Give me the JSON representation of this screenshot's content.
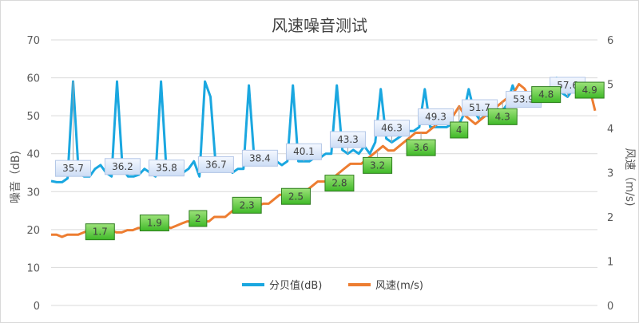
{
  "chart_data": {
    "type": "line",
    "title": "风速噪音测试",
    "ylabel_left": "噪音（dB)",
    "ylabel_right": "风速（m/s)",
    "ylim_left": [
      0,
      70
    ],
    "ylim_right": [
      0,
      6
    ],
    "yticks_left": [
      0,
      10,
      20,
      30,
      40,
      50,
      60,
      70
    ],
    "yticks_right": [
      0,
      1,
      2,
      3,
      4,
      5,
      6
    ],
    "grid": true,
    "legend_position": "bottom",
    "colors": {
      "noise": "#1aa7e0",
      "wind": "#ed7d31"
    },
    "series": [
      {
        "name": "分贝值(dB)",
        "axis": "left",
        "values": [
          32.8,
          32.5,
          32.5,
          33.5,
          59,
          35,
          34,
          34,
          36,
          37,
          35,
          34,
          59,
          36,
          34,
          34,
          34.5,
          36,
          35,
          34,
          59,
          35,
          35,
          34.5,
          35,
          36,
          38,
          34,
          59,
          55,
          36,
          36,
          37,
          35,
          36,
          36,
          58,
          38,
          37,
          37.5,
          37,
          38,
          37,
          38,
          58,
          38,
          38,
          38,
          39,
          39,
          40,
          40,
          58,
          41,
          40,
          41,
          40,
          42,
          40,
          43,
          57,
          44,
          43,
          44,
          45,
          46,
          46,
          47,
          57,
          47,
          47,
          47,
          47,
          48,
          47,
          50,
          57,
          51,
          49,
          50,
          50,
          52,
          51,
          53,
          58,
          54,
          53,
          53,
          54,
          54,
          55,
          54,
          60,
          56,
          55,
          57,
          56,
          57,
          57,
          58
        ]
      },
      {
        "name": "风速(m/s)",
        "axis": "right",
        "values": [
          1.6,
          1.6,
          1.55,
          1.6,
          1.6,
          1.6,
          1.65,
          1.7,
          1.7,
          1.75,
          1.7,
          1.7,
          1.65,
          1.65,
          1.7,
          1.7,
          1.75,
          1.75,
          1.8,
          1.8,
          1.75,
          1.8,
          1.75,
          1.8,
          1.85,
          1.9,
          1.9,
          1.95,
          1.9,
          1.9,
          2,
          2,
          2,
          2.1,
          2.2,
          2.2,
          2.25,
          2.2,
          2.25,
          2.3,
          2.3,
          2.4,
          2.5,
          2.5,
          2.5,
          2.5,
          2.5,
          2.6,
          2.7,
          2.8,
          2.8,
          2.8,
          2.9,
          3,
          3.1,
          3.2,
          3.2,
          3.2,
          3.3,
          3.4,
          3.5,
          3.6,
          3.5,
          3.5,
          3.6,
          3.7,
          3.8,
          3.9,
          3.9,
          3.9,
          4,
          4.1,
          4.1,
          4.2,
          4.3,
          4.5,
          4.3,
          4.2,
          4.1,
          4.2,
          4.3,
          4.4,
          4.5,
          4.6,
          4.7,
          4.8,
          5,
          4.9,
          4.7,
          4.8,
          4.8,
          4.8,
          4.8,
          4.9,
          4.9,
          5,
          4.9,
          4.9,
          4.9,
          4.9,
          4.4
        ]
      }
    ],
    "annotations": {
      "noise": [
        {
          "index": 4,
          "value": 35.7,
          "label": "35.7"
        },
        {
          "index": 13,
          "value": 36.2,
          "label": "36.2"
        },
        {
          "index": 21,
          "value": 35.8,
          "label": "35.8"
        },
        {
          "index": 30,
          "value": 36.7,
          "label": "36.7"
        },
        {
          "index": 38,
          "value": 38.4,
          "label": "38.4"
        },
        {
          "index": 46,
          "value": 40.1,
          "label": "40.1"
        },
        {
          "index": 54,
          "value": 43.3,
          "label": "43.3"
        },
        {
          "index": 62,
          "value": 46.3,
          "label": "46.3"
        },
        {
          "index": 70,
          "value": 49.3,
          "label": "49.3"
        },
        {
          "index": 78,
          "value": 51.7,
          "label": "51.7"
        },
        {
          "index": 86,
          "value": 53.9,
          "label": "53.9"
        },
        {
          "index": 94,
          "value": 57.6,
          "label": "57.6"
        }
      ],
      "wind": [
        {
          "index": 9,
          "value": 1.7,
          "label": "1.7"
        },
        {
          "index": 19,
          "value": 1.9,
          "label": "1.9"
        },
        {
          "index": 27,
          "value": 2,
          "label": "2"
        },
        {
          "index": 36,
          "value": 2.3,
          "label": "2.3"
        },
        {
          "index": 45,
          "value": 2.5,
          "label": "2.5"
        },
        {
          "index": 53,
          "value": 2.8,
          "label": "2.8"
        },
        {
          "index": 60,
          "value": 3.2,
          "label": "3.2"
        },
        {
          "index": 68,
          "value": 3.6,
          "label": "3.6"
        },
        {
          "index": 75,
          "value": 4,
          "label": "4"
        },
        {
          "index": 83,
          "value": 4.3,
          "label": "4.3"
        },
        {
          "index": 91,
          "value": 4.8,
          "label": "4.8"
        },
        {
          "index": 99,
          "value": 4.9,
          "label": "4.9"
        }
      ]
    }
  }
}
